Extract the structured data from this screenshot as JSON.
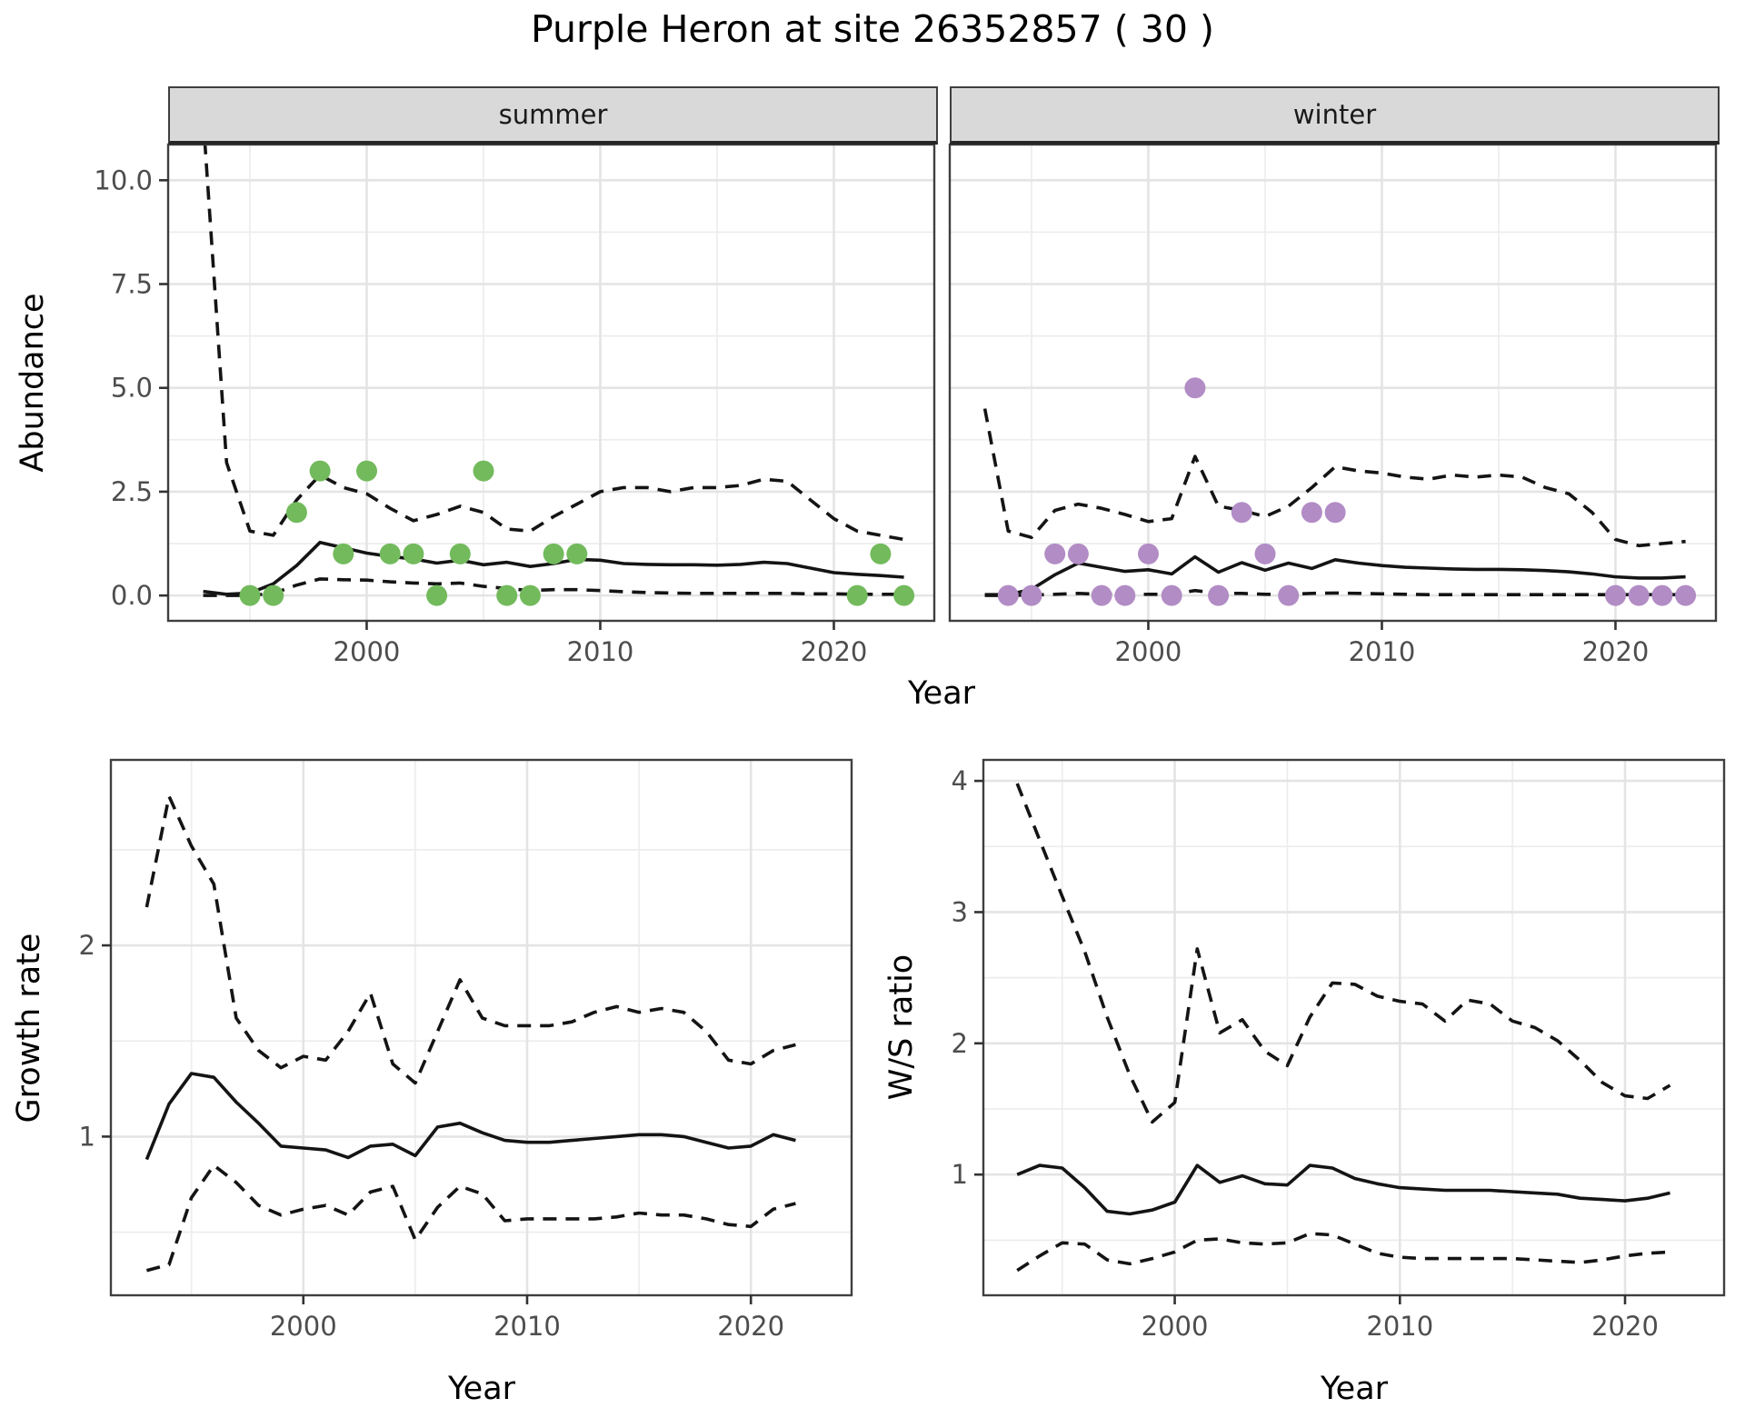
{
  "title": "Purple Heron at site 26352857 ( 30 )",
  "facets": {
    "summer": "summer",
    "winter": "winter"
  },
  "axis_titles": {
    "abundance_y": "Abundance",
    "top_x": "Year",
    "growth_y": "Growth rate",
    "growth_x": "Year",
    "ws_y": "W/S ratio",
    "ws_x": "Year"
  },
  "colors": {
    "summer_point": "#72BA5C",
    "winter_point": "#B28CC5",
    "line": "#141414",
    "grid_major": "#E4E4E4",
    "grid_minor": "#EDEDED",
    "panel_border": "#3f3f3f",
    "tick_mark": "#333333",
    "tick_label": "#4D4D4D",
    "strip_bg": "#D9D9D9"
  },
  "chart_data": [
    {
      "id": "abundance-summer",
      "type": "line",
      "facet": "summer",
      "xlabel": "Year",
      "ylabel": "Abundance",
      "xlim": [
        1991.5,
        2024.3
      ],
      "ylim": [
        -0.61,
        10.86
      ],
      "x": [
        1993,
        1994,
        1995,
        1996,
        1997,
        1998,
        1999,
        2000,
        2001,
        2002,
        2003,
        2004,
        2005,
        2006,
        2007,
        2008,
        2009,
        2010,
        2011,
        2012,
        2013,
        2014,
        2015,
        2016,
        2017,
        2018,
        2019,
        2020,
        2021,
        2022,
        2023
      ],
      "series": [
        {
          "name": "mean",
          "style": "solid",
          "values": [
            0.1,
            0.03,
            0.06,
            0.28,
            0.72,
            1.28,
            1.15,
            1.02,
            0.94,
            0.88,
            0.78,
            0.85,
            0.74,
            0.8,
            0.7,
            0.77,
            0.87,
            0.85,
            0.77,
            0.75,
            0.74,
            0.74,
            0.73,
            0.75,
            0.8,
            0.77,
            0.66,
            0.55,
            0.51,
            0.48,
            0.44
          ]
        },
        {
          "name": "upper 95% CI",
          "style": "dashed",
          "values": [
            11.5,
            3.2,
            1.55,
            1.45,
            2.3,
            2.9,
            2.6,
            2.45,
            2.1,
            1.8,
            1.95,
            2.15,
            2.0,
            1.6,
            1.55,
            1.9,
            2.2,
            2.5,
            2.6,
            2.6,
            2.5,
            2.6,
            2.6,
            2.65,
            2.8,
            2.75,
            2.3,
            1.85,
            1.55,
            1.45,
            1.35
          ]
        },
        {
          "name": "lower 95% CI",
          "style": "dashed",
          "values": [
            0.0,
            0.0,
            0.0,
            0.05,
            0.25,
            0.4,
            0.38,
            0.37,
            0.33,
            0.3,
            0.28,
            0.3,
            0.22,
            0.17,
            0.12,
            0.14,
            0.14,
            0.12,
            0.09,
            0.07,
            0.06,
            0.05,
            0.05,
            0.05,
            0.05,
            0.05,
            0.04,
            0.04,
            0.03,
            0.03,
            0.03
          ]
        }
      ],
      "points": {
        "x": [
          1995,
          1996,
          1997,
          1998,
          1999,
          2000,
          2001,
          2002,
          2003,
          2004,
          2005,
          2006,
          2007,
          2008,
          2009,
          2021,
          2022,
          2023
        ],
        "y": [
          0,
          0,
          2,
          3,
          1,
          3,
          1,
          1,
          0,
          1,
          3,
          0,
          0,
          1,
          1,
          0,
          1,
          0
        ]
      },
      "xticks": [
        {
          "v": 2000,
          "l": "2000"
        },
        {
          "v": 2010,
          "l": "2010"
        },
        {
          "v": 2020,
          "l": "2020"
        }
      ],
      "xgrid_minor": [
        1995,
        2005,
        2015
      ],
      "yticks": [
        {
          "v": 0,
          "l": "0.0"
        },
        {
          "v": 2.5,
          "l": "2.5"
        },
        {
          "v": 5,
          "l": "5.0"
        },
        {
          "v": 7.5,
          "l": "7.5"
        },
        {
          "v": 10,
          "l": "10.0"
        }
      ],
      "ygrid_minor": [
        1.25,
        3.75,
        6.25,
        8.75
      ]
    },
    {
      "id": "abundance-winter",
      "type": "line",
      "facet": "winter",
      "xlabel": "Year",
      "ylabel": "Abundance",
      "xlim": [
        1991.5,
        2024.3
      ],
      "ylim": [
        -0.61,
        10.86
      ],
      "x": [
        1993,
        1994,
        1995,
        1996,
        1997,
        1998,
        1999,
        2000,
        2001,
        2002,
        2003,
        2004,
        2005,
        2006,
        2007,
        2008,
        2009,
        2010,
        2011,
        2012,
        2013,
        2014,
        2015,
        2016,
        2017,
        2018,
        2019,
        2020,
        2021,
        2022,
        2023
      ],
      "series": [
        {
          "name": "mean",
          "style": "solid",
          "values": [
            0.02,
            0.02,
            0.15,
            0.5,
            0.78,
            0.68,
            0.58,
            0.62,
            0.52,
            0.93,
            0.56,
            0.79,
            0.61,
            0.78,
            0.65,
            0.86,
            0.78,
            0.72,
            0.68,
            0.66,
            0.64,
            0.63,
            0.63,
            0.62,
            0.6,
            0.57,
            0.52,
            0.45,
            0.42,
            0.42,
            0.45
          ]
        },
        {
          "name": "upper 95% CI",
          "style": "dashed",
          "values": [
            4.5,
            1.55,
            1.4,
            2.05,
            2.2,
            2.1,
            1.95,
            1.78,
            1.85,
            3.35,
            2.15,
            2.05,
            1.9,
            2.15,
            2.6,
            3.1,
            3.0,
            2.95,
            2.85,
            2.8,
            2.9,
            2.85,
            2.9,
            2.85,
            2.6,
            2.45,
            2.0,
            1.35,
            1.2,
            1.25,
            1.3
          ]
        },
        {
          "name": "lower 95% CI",
          "style": "dashed",
          "values": [
            0.0,
            0.0,
            0.01,
            0.03,
            0.05,
            0.03,
            0.02,
            0.03,
            0.03,
            0.12,
            0.05,
            0.05,
            0.03,
            0.03,
            0.05,
            0.06,
            0.05,
            0.04,
            0.03,
            0.02,
            0.02,
            0.02,
            0.02,
            0.02,
            0.02,
            0.02,
            0.02,
            0.02,
            0.02,
            0.02,
            0.02
          ]
        }
      ],
      "points": {
        "x": [
          1994,
          1995,
          1996,
          1997,
          1998,
          1999,
          2000,
          2001,
          2002,
          2003,
          2004,
          2005,
          2006,
          2007,
          2008,
          2020,
          2021,
          2022,
          2023
        ],
        "y": [
          0,
          0,
          1,
          1,
          0,
          0,
          1,
          0,
          5,
          0,
          2,
          1,
          0,
          2,
          2,
          0,
          0,
          0,
          0
        ]
      },
      "xticks": [
        {
          "v": 2000,
          "l": "2000"
        },
        {
          "v": 2010,
          "l": "2010"
        },
        {
          "v": 2020,
          "l": "2020"
        }
      ],
      "xgrid_minor": [
        1995,
        2005,
        2015
      ],
      "yticks": [
        {
          "v": 0,
          "l": "0.0"
        },
        {
          "v": 2.5,
          "l": "2.5"
        },
        {
          "v": 5,
          "l": "5.0"
        },
        {
          "v": 7.5,
          "l": "7.5"
        },
        {
          "v": 10,
          "l": "10.0"
        }
      ],
      "ygrid_minor": [
        1.25,
        3.75,
        6.25,
        8.75
      ]
    },
    {
      "id": "growth-rate",
      "type": "line",
      "xlabel": "Year",
      "ylabel": "Growth rate",
      "xlim": [
        1991.4,
        2024.5
      ],
      "ylim": [
        0.17,
        2.97
      ],
      "x": [
        1993,
        1994,
        1995,
        1996,
        1997,
        1998,
        1999,
        2000,
        2001,
        2002,
        2003,
        2004,
        2005,
        2006,
        2007,
        2008,
        2009,
        2010,
        2011,
        2012,
        2013,
        2014,
        2015,
        2016,
        2017,
        2018,
        2019,
        2020,
        2021,
        2022
      ],
      "series": [
        {
          "name": "mean",
          "style": "solid",
          "values": [
            0.88,
            1.17,
            1.33,
            1.31,
            1.18,
            1.07,
            0.95,
            0.94,
            0.93,
            0.89,
            0.95,
            0.96,
            0.9,
            1.05,
            1.07,
            1.02,
            0.98,
            0.97,
            0.97,
            0.98,
            0.99,
            1.0,
            1.01,
            1.01,
            1.0,
            0.97,
            0.94,
            0.95,
            1.01,
            0.98
          ]
        },
        {
          "name": "upper 95% CI",
          "style": "dashed",
          "values": [
            2.2,
            2.78,
            2.52,
            2.32,
            1.62,
            1.45,
            1.36,
            1.42,
            1.4,
            1.55,
            1.75,
            1.38,
            1.28,
            1.55,
            1.82,
            1.62,
            1.58,
            1.58,
            1.58,
            1.6,
            1.65,
            1.68,
            1.65,
            1.67,
            1.65,
            1.55,
            1.4,
            1.38,
            1.45,
            1.48
          ]
        },
        {
          "name": "lower 95% CI",
          "style": "dashed",
          "values": [
            0.3,
            0.33,
            0.68,
            0.85,
            0.76,
            0.64,
            0.59,
            0.62,
            0.64,
            0.59,
            0.71,
            0.74,
            0.46,
            0.63,
            0.74,
            0.7,
            0.56,
            0.57,
            0.57,
            0.57,
            0.57,
            0.58,
            0.6,
            0.59,
            0.59,
            0.57,
            0.54,
            0.53,
            0.62,
            0.65
          ]
        }
      ],
      "xticks": [
        {
          "v": 2000,
          "l": "2000"
        },
        {
          "v": 2010,
          "l": "2010"
        },
        {
          "v": 2020,
          "l": "2020"
        }
      ],
      "xgrid_minor": [
        1995,
        2005,
        2015
      ],
      "yticks": [
        {
          "v": 1,
          "l": "1"
        },
        {
          "v": 2,
          "l": "2"
        }
      ],
      "ygrid_minor": [
        0.5,
        1.5,
        2.5
      ]
    },
    {
      "id": "ws-ratio",
      "type": "line",
      "xlabel": "Year",
      "ylabel": "W/S ratio",
      "xlim": [
        1991.5,
        2024.4
      ],
      "ylim": [
        0.08,
        4.16
      ],
      "x": [
        1993,
        1994,
        1995,
        1996,
        1997,
        1998,
        1999,
        2000,
        2001,
        2002,
        2003,
        2004,
        2005,
        2006,
        2007,
        2008,
        2009,
        2010,
        2011,
        2012,
        2013,
        2014,
        2015,
        2016,
        2017,
        2018,
        2019,
        2020,
        2021,
        2022
      ],
      "series": [
        {
          "name": "mean",
          "style": "solid",
          "values": [
            1.0,
            1.07,
            1.05,
            0.9,
            0.72,
            0.7,
            0.73,
            0.79,
            1.07,
            0.94,
            0.99,
            0.93,
            0.92,
            1.07,
            1.05,
            0.97,
            0.93,
            0.9,
            0.89,
            0.88,
            0.88,
            0.88,
            0.87,
            0.86,
            0.85,
            0.82,
            0.81,
            0.8,
            0.82,
            0.86
          ]
        },
        {
          "name": "upper 95% CI",
          "style": "dashed",
          "values": [
            3.98,
            3.55,
            3.12,
            2.7,
            2.2,
            1.76,
            1.4,
            1.55,
            2.72,
            2.08,
            2.18,
            1.94,
            1.83,
            2.2,
            2.46,
            2.45,
            2.36,
            2.32,
            2.3,
            2.17,
            2.33,
            2.3,
            2.17,
            2.12,
            2.02,
            1.87,
            1.7,
            1.6,
            1.58,
            1.68
          ]
        },
        {
          "name": "lower 95% CI",
          "style": "dashed",
          "values": [
            0.27,
            0.38,
            0.48,
            0.47,
            0.35,
            0.32,
            0.36,
            0.41,
            0.5,
            0.51,
            0.48,
            0.47,
            0.48,
            0.55,
            0.54,
            0.47,
            0.4,
            0.37,
            0.36,
            0.36,
            0.36,
            0.36,
            0.36,
            0.35,
            0.34,
            0.33,
            0.35,
            0.38,
            0.4,
            0.41
          ]
        }
      ],
      "xticks": [
        {
          "v": 2000,
          "l": "2000"
        },
        {
          "v": 2010,
          "l": "2010"
        },
        {
          "v": 2020,
          "l": "2020"
        }
      ],
      "xgrid_minor": [
        1995,
        2005,
        2015
      ],
      "yticks": [
        {
          "v": 1,
          "l": "1"
        },
        {
          "v": 2,
          "l": "2"
        },
        {
          "v": 3,
          "l": "3"
        },
        {
          "v": 4,
          "l": "4"
        }
      ],
      "ygrid_minor": [
        0.5,
        1.5,
        2.5,
        3.5
      ]
    }
  ]
}
